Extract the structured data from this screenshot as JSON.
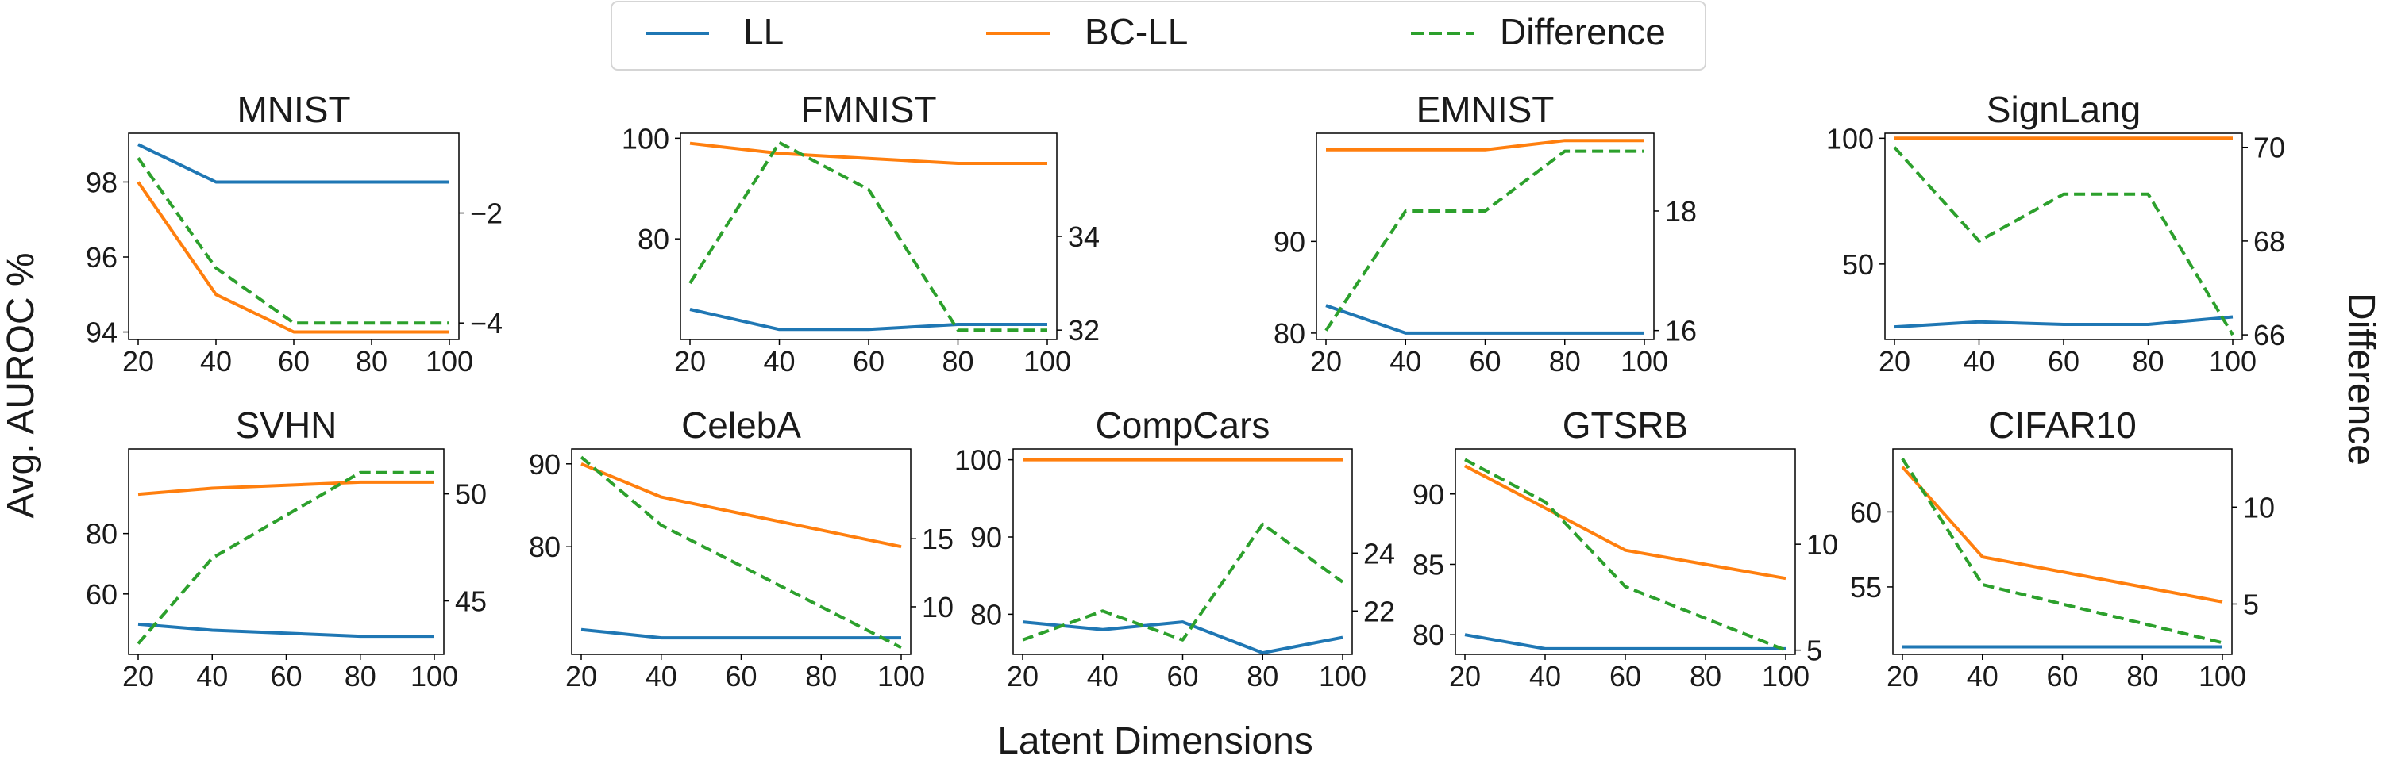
{
  "figure": {
    "y_axis_label": "Avg. AUROC %",
    "x_axis_label": "Latent Dimensions",
    "right_axis_label": "Difference"
  },
  "legend": {
    "ll": "LL",
    "bcll": "BC-LL",
    "diff": "Difference"
  },
  "colors": {
    "ll": "#1f77b4",
    "bcll": "#ff7f0e",
    "diff": "#2ca02c"
  },
  "chart_data": [
    {
      "type": "line",
      "title": "MNIST",
      "x": [
        20,
        40,
        60,
        80,
        100
      ],
      "left_ylim": [
        93.8,
        99.3
      ],
      "left_ticks": [
        94,
        96,
        98
      ],
      "right_ylim": [
        -4.3,
        -0.55
      ],
      "right_ticks": [
        -4,
        -2
      ],
      "right_tick_labels": [
        "−4",
        "−2"
      ],
      "series": [
        {
          "name": "LL",
          "axis": "left",
          "values": [
            99,
            98,
            98,
            98,
            98
          ]
        },
        {
          "name": "BC-LL",
          "axis": "left",
          "values": [
            98,
            95,
            94,
            94,
            94
          ]
        },
        {
          "name": "Difference",
          "axis": "right",
          "values": [
            -1,
            -3,
            -4,
            -4,
            -4
          ]
        }
      ]
    },
    {
      "type": "line",
      "title": "FMNIST",
      "x": [
        20,
        40,
        60,
        80,
        100
      ],
      "left_ylim": [
        60,
        101
      ],
      "left_ticks": [
        80,
        100
      ],
      "right_ylim": [
        31.8,
        36.2
      ],
      "right_ticks": [
        32,
        34
      ],
      "series": [
        {
          "name": "LL",
          "axis": "left",
          "values": [
            66,
            62,
            62,
            63,
            63
          ]
        },
        {
          "name": "BC-LL",
          "axis": "left",
          "values": [
            99,
            97,
            96,
            95,
            95
          ]
        },
        {
          "name": "Difference",
          "axis": "right",
          "values": [
            33,
            36,
            35,
            32,
            32
          ]
        }
      ]
    },
    {
      "type": "line",
      "title": "EMNIST",
      "x": [
        20,
        40,
        60,
        80,
        100
      ],
      "left_ylim": [
        79.3,
        101.8
      ],
      "left_ticks": [
        80,
        90
      ],
      "right_ylim": [
        15.85,
        19.3
      ],
      "right_ticks": [
        16,
        18
      ],
      "series": [
        {
          "name": "LL",
          "axis": "left",
          "values": [
            83,
            80,
            80,
            80,
            80
          ]
        },
        {
          "name": "BC-LL",
          "axis": "left",
          "values": [
            100,
            100,
            100,
            101,
            101
          ]
        },
        {
          "name": "Difference",
          "axis": "right",
          "values": [
            16,
            18,
            18,
            19,
            19
          ]
        }
      ]
    },
    {
      "type": "line",
      "title": "SignLang",
      "x": [
        20,
        40,
        60,
        80,
        100
      ],
      "left_ylim": [
        20,
        102
      ],
      "left_ticks": [
        50,
        100
      ],
      "right_ylim": [
        65.9,
        70.3
      ],
      "right_ticks": [
        66,
        68,
        70
      ],
      "series": [
        {
          "name": "LL",
          "axis": "left",
          "values": [
            25,
            27,
            26,
            26,
            29
          ]
        },
        {
          "name": "BC-LL",
          "axis": "left",
          "values": [
            100,
            100,
            100,
            100,
            100
          ]
        },
        {
          "name": "Difference",
          "axis": "right",
          "values": [
            70,
            68,
            69,
            69,
            66
          ]
        }
      ]
    },
    {
      "type": "line",
      "title": "SVHN",
      "x": [
        20,
        40,
        60,
        80,
        100
      ],
      "left_ylim": [
        40,
        108
      ],
      "left_ticks": [
        60,
        80
      ],
      "right_ylim": [
        42.5,
        52.1
      ],
      "right_ticks": [
        45,
        50
      ],
      "series": [
        {
          "name": "LL",
          "axis": "left",
          "values": [
            50,
            48,
            47,
            46,
            46
          ]
        },
        {
          "name": "BC-LL",
          "axis": "left",
          "values": [
            93,
            95,
            96,
            97,
            97
          ]
        },
        {
          "name": "Difference",
          "axis": "right",
          "values": [
            43,
            47,
            49,
            51,
            51
          ]
        }
      ]
    },
    {
      "type": "line",
      "title": "CelebA",
      "x": [
        20,
        40,
        60,
        80,
        100
      ],
      "left_ylim": [
        67,
        91.8
      ],
      "left_ticks": [
        80,
        90
      ],
      "right_ylim": [
        6.5,
        21.6
      ],
      "right_ticks": [
        10,
        15
      ],
      "series": [
        {
          "name": "LL",
          "axis": "left",
          "values": [
            70,
            69,
            69,
            69,
            69
          ]
        },
        {
          "name": "BC-LL",
          "axis": "left",
          "values": [
            90,
            86,
            84,
            82,
            80
          ]
        },
        {
          "name": "Difference",
          "axis": "right",
          "values": [
            21,
            16,
            13,
            10,
            7
          ]
        }
      ]
    },
    {
      "type": "line",
      "title": "CompCars",
      "x": [
        20,
        40,
        60,
        80,
        100
      ],
      "left_ylim": [
        74.8,
        101.4
      ],
      "left_ticks": [
        80,
        90,
        100
      ],
      "right_ylim": [
        20.5,
        27.6
      ],
      "right_ticks": [
        22,
        24
      ],
      "series": [
        {
          "name": "LL",
          "axis": "left",
          "values": [
            79,
            78,
            79,
            75,
            77
          ]
        },
        {
          "name": "BC-LL",
          "axis": "left",
          "values": [
            100,
            100,
            100,
            100,
            100
          ]
        },
        {
          "name": "Difference",
          "axis": "right",
          "values": [
            21,
            22,
            21,
            25,
            23
          ]
        }
      ]
    },
    {
      "type": "line",
      "title": "GTSRB",
      "x": [
        20,
        40,
        60,
        80,
        100
      ],
      "left_ylim": [
        78.6,
        93.2
      ],
      "left_ticks": [
        80,
        85,
        90
      ],
      "right_ylim": [
        4.8,
        14.5
      ],
      "right_ticks": [
        5,
        10
      ],
      "series": [
        {
          "name": "LL",
          "axis": "left",
          "values": [
            80,
            79,
            79,
            79,
            79
          ]
        },
        {
          "name": "BC-LL",
          "axis": "left",
          "values": [
            92,
            89,
            86,
            85,
            84
          ]
        },
        {
          "name": "Difference",
          "axis": "right",
          "values": [
            14,
            12,
            8,
            6.5,
            5
          ]
        }
      ]
    },
    {
      "type": "line",
      "title": "CIFAR10",
      "x": [
        20,
        40,
        60,
        80,
        100
      ],
      "left_ylim": [
        50.5,
        64.2
      ],
      "left_ticks": [
        55,
        60
      ],
      "right_ylim": [
        2.4,
        13.0
      ],
      "right_ticks": [
        5,
        10
      ],
      "series": [
        {
          "name": "LL",
          "axis": "left",
          "values": [
            51,
            51,
            51,
            51,
            51
          ]
        },
        {
          "name": "BC-LL",
          "axis": "left",
          "values": [
            63,
            57,
            56,
            55,
            54
          ]
        },
        {
          "name": "Difference",
          "axis": "right",
          "values": [
            12.5,
            6,
            5,
            4,
            3
          ]
        }
      ]
    }
  ]
}
